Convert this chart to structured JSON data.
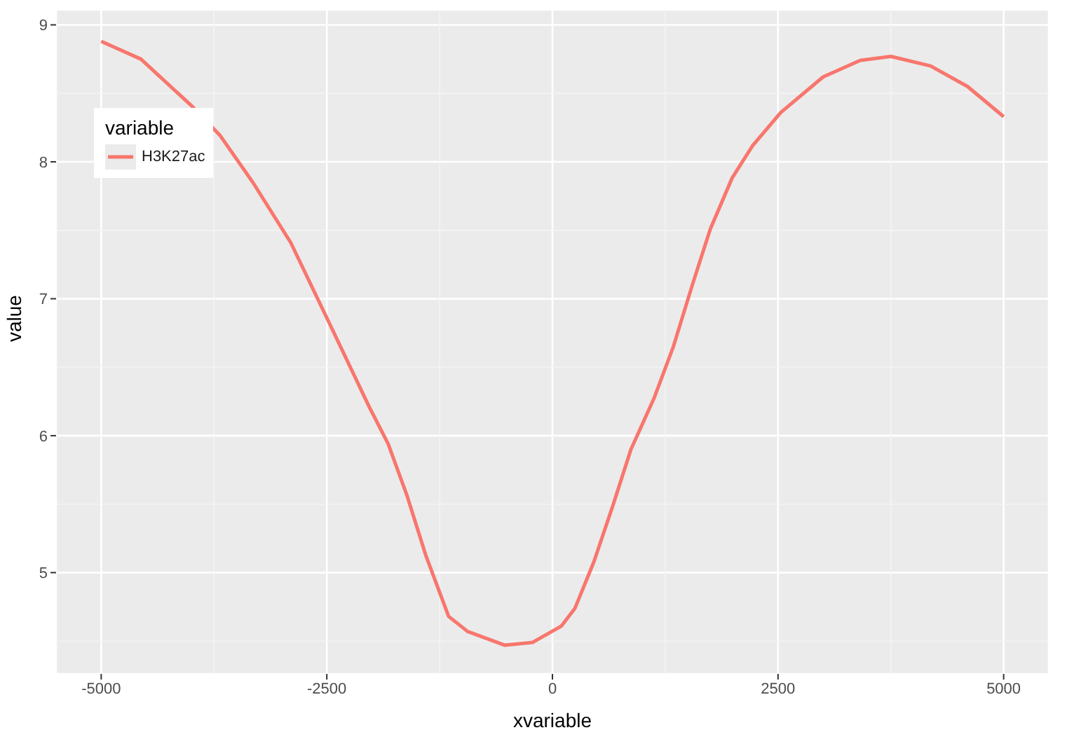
{
  "chart_data": {
    "type": "line",
    "xlabel": "xvariable",
    "ylabel": "value",
    "legend_title": "variable",
    "legend": "top left",
    "grid": true,
    "marker": "none",
    "line_style": "solid",
    "xlim": [
      -5500,
      5500
    ],
    "xticks": [
      -5000,
      -2500,
      0,
      2500,
      5000
    ],
    "ylim": [
      4.26,
      9.11
    ],
    "yticks": [
      5,
      6,
      7,
      8,
      9
    ],
    "x": [
      -5000,
      -4560,
      -4000,
      -3680,
      -3320,
      -2900,
      -2500,
      -2030,
      -1820,
      -1610,
      -1400,
      -1150,
      -940,
      -530,
      -220,
      100,
      250,
      460,
      670,
      870,
      1130,
      1340,
      1550,
      1750,
      1990,
      2220,
      2530,
      3000,
      3410,
      3750,
      4190,
      4600,
      5000
    ],
    "series": [
      {
        "name": "H3K27ac",
        "color": "#f8766d",
        "values": [
          8.88,
          8.75,
          8.41,
          8.19,
          7.85,
          7.41,
          6.86,
          6.21,
          5.94,
          5.56,
          5.12,
          4.68,
          4.57,
          4.47,
          4.49,
          4.61,
          4.74,
          5.08,
          5.49,
          5.9,
          6.28,
          6.65,
          7.1,
          7.51,
          7.88,
          8.12,
          8.36,
          8.62,
          8.74,
          8.77,
          8.7,
          8.55,
          8.33
        ]
      }
    ]
  }
}
